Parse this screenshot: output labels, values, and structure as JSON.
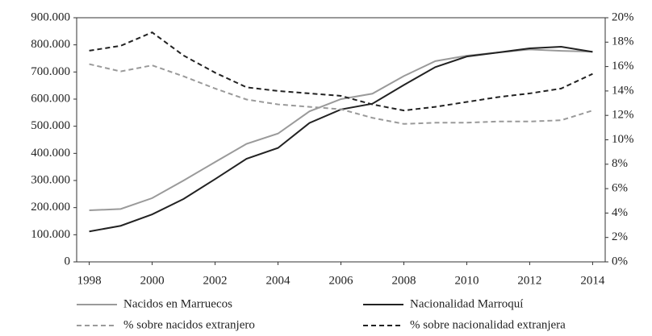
{
  "chart_data": {
    "type": "line",
    "x": [
      1998,
      1999,
      2000,
      2001,
      2002,
      2003,
      2004,
      2005,
      2006,
      2007,
      2008,
      2009,
      2010,
      2011,
      2012,
      2013,
      2014
    ],
    "xlim": [
      1997.6,
      2014.4
    ],
    "xticks": [
      1998,
      2000,
      2002,
      2004,
      2006,
      2008,
      2010,
      2012,
      2014
    ],
    "ylim": [
      0,
      900000
    ],
    "yticks": [
      0,
      {
        "value": 100000,
        "label": "100.000"
      },
      {
        "value": 200000,
        "label": "200.000"
      },
      {
        "value": 300000,
        "label": "300.000"
      },
      {
        "value": 400000,
        "label": "400.000"
      },
      {
        "value": 500000,
        "label": "500.000"
      },
      {
        "value": 600000,
        "label": "600.000"
      },
      {
        "value": 700000,
        "label": "700.000"
      },
      {
        "value": 800000,
        "label": "800.000"
      },
      {
        "value": 900000,
        "label": "900.000"
      }
    ],
    "y2lim": [
      0,
      20
    ],
    "y2ticks": [
      {
        "value": 0,
        "label": "0%"
      },
      {
        "value": 2,
        "label": "2%"
      },
      {
        "value": 4,
        "label": "4%"
      },
      {
        "value": 6,
        "label": "6%"
      },
      {
        "value": 8,
        "label": "8%"
      },
      {
        "value": 10,
        "label": "10%"
      },
      {
        "value": 12,
        "label": "12%"
      },
      {
        "value": 14,
        "label": "14%"
      },
      {
        "value": 16,
        "label": "16%"
      },
      {
        "value": 18,
        "label": "18%"
      },
      {
        "value": 20,
        "label": "20%"
      }
    ],
    "legend": "bottom",
    "series": [
      {
        "name": "Nacidos en Marruecos",
        "color": "#9a9a9a",
        "dashed": false,
        "values": [
          190000,
          195000,
          235000,
          300000,
          368000,
          435000,
          473000,
          555000,
          600000,
          620000,
          685000,
          740000,
          760000,
          772000,
          783000,
          778000,
          775000
        ]
      },
      {
        "name": "Nacionalidad Marroquí",
        "color": "#222222",
        "dashed": false,
        "values": [
          112000,
          133000,
          175000,
          232000,
          305000,
          380000,
          420000,
          512000,
          562000,
          583000,
          652000,
          718000,
          757000,
          772000,
          787000,
          793000,
          774000
        ]
      },
      {
        "name": "% sobre nacidos extranjero",
        "color": "#9a9a9a",
        "dashed": true,
        "axis": "y2",
        "values": [
          16.2,
          15.6,
          16.1,
          15.2,
          14.2,
          13.3,
          12.9,
          12.7,
          12.5,
          11.8,
          11.3,
          11.4,
          11.4,
          11.5,
          11.5,
          11.6,
          12.4
        ]
      },
      {
        "name": "% sobre nacionalidad extranjera",
        "color": "#222222",
        "dashed": true,
        "axis": "y2",
        "values": [
          17.3,
          17.7,
          18.8,
          16.9,
          15.5,
          14.3,
          14.0,
          13.8,
          13.6,
          12.9,
          12.4,
          12.7,
          13.1,
          13.5,
          13.8,
          14.2,
          15.4
        ]
      }
    ]
  }
}
